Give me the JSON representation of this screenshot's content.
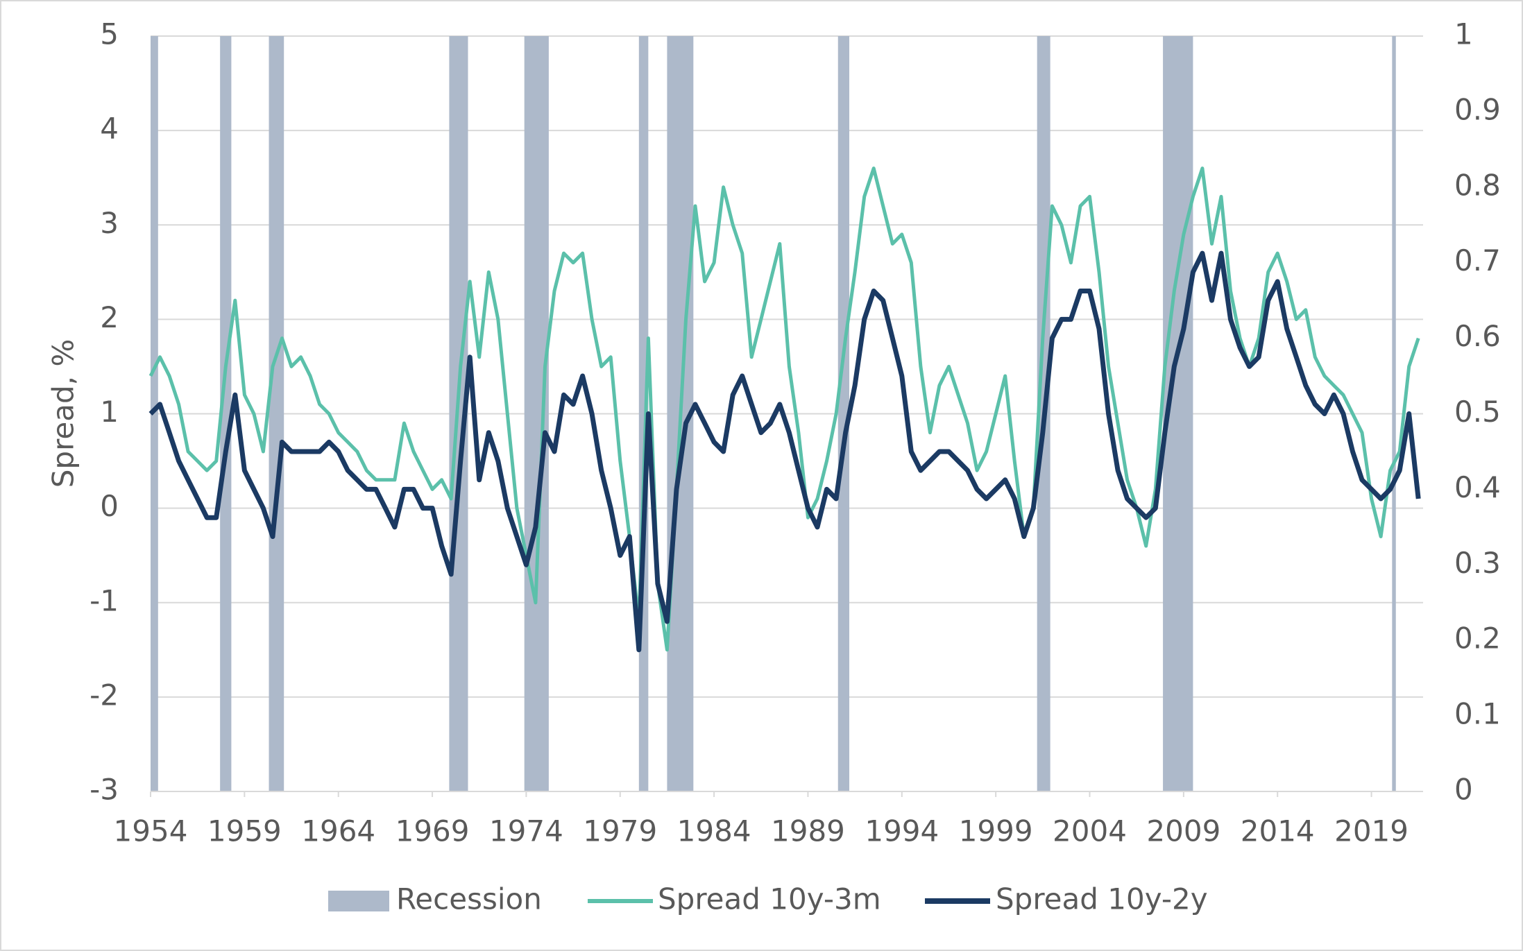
{
  "chart_data": {
    "type": "line",
    "y_label": "Spread, %",
    "xlim": [
      1954,
      2021.75
    ],
    "xticks": [
      1954,
      1959,
      1964,
      1969,
      1974,
      1979,
      1984,
      1989,
      1994,
      1999,
      2004,
      2009,
      2014,
      2019
    ],
    "ylim": [
      -3,
      5
    ],
    "yticks": [
      -3,
      -2,
      -1,
      0,
      1,
      2,
      3,
      4,
      5
    ],
    "y2lim": [
      0,
      1
    ],
    "y2ticks": [
      0,
      0.1,
      0.2,
      0.3,
      0.4,
      0.5,
      0.6,
      0.7,
      0.8,
      0.9,
      1
    ],
    "grid": true,
    "legend": "bottom",
    "recessions": {
      "name": "Recession",
      "color": "#adb9ca",
      "axis": "y2",
      "x_start": [
        1954,
        1957.7,
        1960.3,
        1969.9,
        1973.9,
        1980.0,
        1981.5,
        1990.6,
        2001.2,
        2007.9,
        2020.1
      ],
      "x_end": [
        1954.4,
        1958.3,
        1961.1,
        1970.9,
        1975.2,
        1980.5,
        1982.9,
        1991.2,
        2001.9,
        2009.5,
        2020.3
      ],
      "values": [
        1,
        1,
        1,
        1,
        1,
        1,
        1,
        1,
        1,
        1,
        1
      ]
    },
    "x": [
      1954,
      1954.5,
      1955,
      1955.5,
      1956,
      1956.5,
      1957,
      1957.5,
      1958,
      1958.5,
      1959,
      1959.5,
      1960,
      1960.5,
      1961,
      1961.5,
      1962,
      1962.5,
      1963,
      1963.5,
      1964,
      1964.5,
      1965,
      1965.5,
      1966,
      1966.5,
      1967,
      1967.5,
      1968,
      1968.5,
      1969,
      1969.5,
      1970,
      1970.5,
      1971,
      1971.5,
      1972,
      1972.5,
      1973,
      1973.5,
      1974,
      1974.5,
      1975,
      1975.5,
      1976,
      1976.5,
      1977,
      1977.5,
      1978,
      1978.5,
      1979,
      1979.5,
      1980,
      1980.5,
      1981,
      1981.5,
      1982,
      1982.5,
      1983,
      1983.5,
      1984,
      1984.5,
      1985,
      1985.5,
      1986,
      1986.5,
      1987,
      1987.5,
      1988,
      1988.5,
      1989,
      1989.5,
      1990,
      1990.5,
      1991,
      1991.5,
      1992,
      1992.5,
      1993,
      1993.5,
      1994,
      1994.5,
      1995,
      1995.5,
      1996,
      1996.5,
      1997,
      1997.5,
      1998,
      1998.5,
      1999,
      1999.5,
      2000,
      2000.5,
      2001,
      2001.5,
      2002,
      2002.5,
      2003,
      2003.5,
      2004,
      2004.5,
      2005,
      2005.5,
      2006,
      2006.5,
      2007,
      2007.5,
      2008,
      2008.5,
      2009,
      2009.5,
      2010,
      2010.5,
      2011,
      2011.5,
      2012,
      2012.5,
      2013,
      2013.5,
      2014,
      2014.5,
      2015,
      2015.5,
      2016,
      2016.5,
      2017,
      2017.5,
      2018,
      2018.5,
      2019,
      2019.5,
      2020,
      2020.5,
      2021,
      2021.5
    ],
    "series": [
      {
        "name": "Spread 10y-3m",
        "color": "#5bc0aa",
        "values": [
          1.4,
          1.6,
          1.4,
          1.1,
          0.6,
          0.5,
          0.4,
          0.5,
          1.5,
          2.2,
          1.2,
          1.0,
          0.6,
          1.5,
          1.8,
          1.5,
          1.6,
          1.4,
          1.1,
          1.0,
          0.8,
          0.7,
          0.6,
          0.4,
          0.3,
          0.3,
          0.3,
          0.9,
          0.6,
          0.4,
          0.2,
          0.3,
          0.1,
          1.5,
          2.4,
          1.6,
          2.5,
          2.0,
          1.0,
          0.0,
          -0.5,
          -1.0,
          1.5,
          2.3,
          2.7,
          2.6,
          2.7,
          2.0,
          1.5,
          1.6,
          0.5,
          -0.3,
          -1.2,
          1.8,
          -0.8,
          -1.5,
          0.2,
          2.0,
          3.2,
          2.4,
          2.6,
          3.4,
          3.0,
          2.7,
          1.6,
          2.0,
          2.4,
          2.8,
          1.5,
          0.8,
          -0.1,
          0.1,
          0.5,
          1.0,
          1.8,
          2.5,
          3.3,
          3.6,
          3.2,
          2.8,
          2.9,
          2.6,
          1.5,
          0.8,
          1.3,
          1.5,
          1.2,
          0.9,
          0.4,
          0.6,
          1.0,
          1.4,
          0.5,
          -0.3,
          0.0,
          1.8,
          3.2,
          3.0,
          2.6,
          3.2,
          3.3,
          2.5,
          1.5,
          0.9,
          0.3,
          0.0,
          -0.4,
          0.2,
          1.5,
          2.3,
          2.9,
          3.3,
          3.6,
          2.8,
          3.3,
          2.3,
          1.8,
          1.5,
          1.8,
          2.5,
          2.7,
          2.4,
          2.0,
          2.1,
          1.6,
          1.4,
          1.3,
          1.2,
          1.0,
          0.8,
          0.1,
          -0.3,
          0.4,
          0.6,
          1.5,
          1.8
        ]
      },
      {
        "name": "Spread 10y-2y",
        "color": "#1b3a63",
        "values": [
          1.0,
          1.1,
          0.8,
          0.5,
          0.3,
          0.1,
          -0.1,
          -0.1,
          0.6,
          1.2,
          0.4,
          0.2,
          0.0,
          -0.3,
          0.7,
          0.6,
          0.6,
          0.6,
          0.6,
          0.7,
          0.6,
          0.4,
          0.3,
          0.2,
          0.2,
          0.0,
          -0.2,
          0.2,
          0.2,
          0.0,
          0.0,
          -0.4,
          -0.7,
          0.5,
          1.6,
          0.3,
          0.8,
          0.5,
          0.0,
          -0.3,
          -0.6,
          -0.2,
          0.8,
          0.6,
          1.2,
          1.1,
          1.4,
          1.0,
          0.4,
          0.0,
          -0.5,
          -0.3,
          -1.5,
          1.0,
          -0.8,
          -1.2,
          0.2,
          0.9,
          1.1,
          0.9,
          0.7,
          0.6,
          1.2,
          1.4,
          1.1,
          0.8,
          0.9,
          1.1,
          0.8,
          0.4,
          0.0,
          -0.2,
          0.2,
          0.1,
          0.8,
          1.3,
          2.0,
          2.3,
          2.2,
          1.8,
          1.4,
          0.6,
          0.4,
          0.5,
          0.6,
          0.6,
          0.5,
          0.4,
          0.2,
          0.1,
          0.2,
          0.3,
          0.1,
          -0.3,
          0.0,
          0.8,
          1.8,
          2.0,
          2.0,
          2.3,
          2.3,
          1.9,
          1.0,
          0.4,
          0.1,
          0.0,
          -0.1,
          0.0,
          0.8,
          1.5,
          1.9,
          2.5,
          2.7,
          2.2,
          2.7,
          2.0,
          1.7,
          1.5,
          1.6,
          2.2,
          2.4,
          1.9,
          1.6,
          1.3,
          1.1,
          1.0,
          1.2,
          1.0,
          0.6,
          0.3,
          0.2,
          0.1,
          0.2,
          0.4,
          1.0,
          0.1
        ]
      }
    ]
  }
}
